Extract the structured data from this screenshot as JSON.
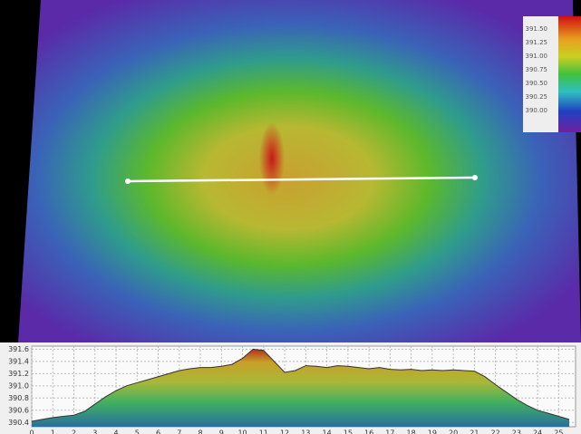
{
  "map": {
    "colorbar": {
      "ticks": [
        "391.50",
        "391.25",
        "391.00",
        "390.75",
        "390.50",
        "390.25",
        "390.00"
      ]
    }
  },
  "chart_data": {
    "type": "area",
    "color": "#333333",
    "x": [
      0,
      0.5,
      1,
      1.5,
      2,
      2.5,
      3,
      3.5,
      4,
      4.5,
      5,
      5.5,
      6,
      6.5,
      7,
      7.5,
      8,
      8.5,
      9,
      9.5,
      10,
      10.5,
      11,
      11.5,
      12,
      12.5,
      13,
      13.5,
      14,
      14.5,
      15,
      15.5,
      16,
      16.5,
      17,
      17.5,
      18,
      18.5,
      19,
      19.5,
      20,
      20.5,
      21,
      21.5,
      22,
      22.5,
      23,
      23.5,
      24,
      24.5,
      25,
      25.5
    ],
    "values": [
      390.42,
      390.45,
      390.48,
      390.5,
      390.52,
      390.58,
      390.7,
      390.82,
      390.92,
      391.0,
      391.05,
      391.1,
      391.15,
      391.2,
      391.25,
      391.28,
      391.3,
      391.3,
      391.32,
      391.35,
      391.45,
      391.6,
      391.58,
      391.4,
      391.22,
      391.25,
      391.33,
      391.32,
      391.3,
      391.33,
      391.32,
      391.3,
      391.28,
      391.3,
      391.27,
      391.26,
      391.27,
      391.25,
      391.26,
      391.25,
      391.26,
      391.25,
      391.24,
      391.15,
      391.02,
      390.9,
      390.78,
      390.68,
      390.6,
      390.55,
      390.5,
      390.45
    ],
    "xlim": [
      0,
      25.8
    ],
    "ylim": [
      390.33,
      391.65
    ],
    "xticks": [
      0,
      1,
      2,
      3,
      4,
      5,
      6,
      7,
      8,
      9,
      10,
      11,
      12,
      13,
      14,
      15,
      16,
      17,
      18,
      19,
      20,
      21,
      22,
      23,
      24,
      25
    ],
    "yticks": [
      390.4,
      390.6,
      390.8,
      {
        "value": 391,
        "label": "391.0"
      },
      391.2,
      391.4,
      391.6
    ],
    "grid": true
  }
}
